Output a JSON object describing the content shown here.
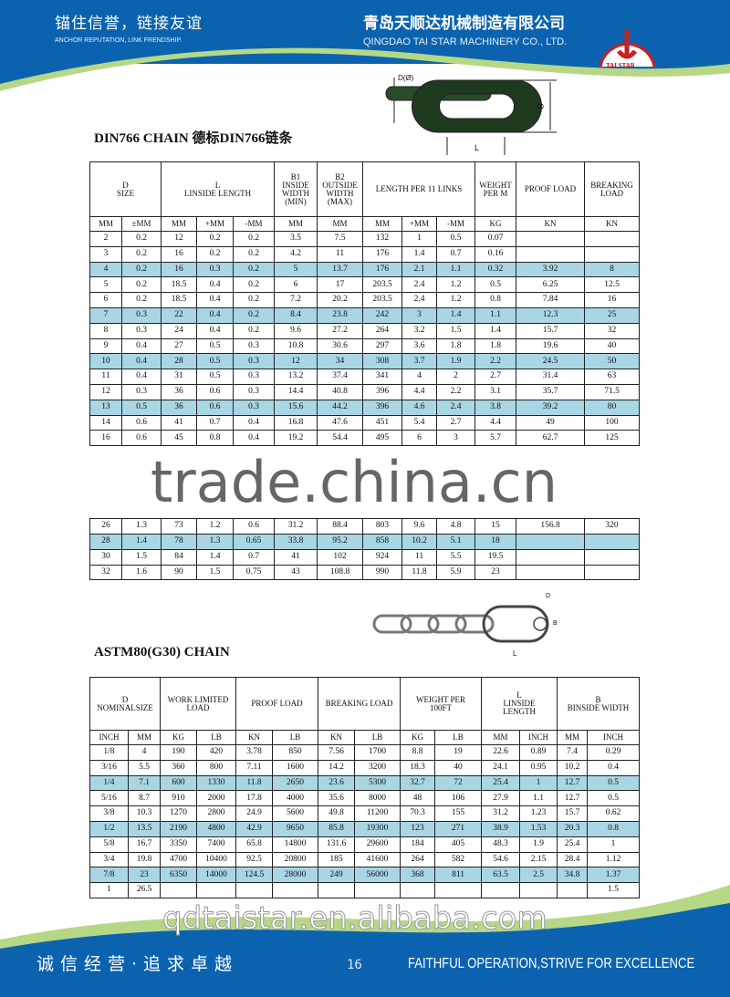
{
  "header": {
    "slogan_cn": "锚住信誉，链接友谊",
    "slogan_en": "ANCHOR REPUTATION, LINK FRENDSHIP.",
    "company_cn": "青岛天顺达机械制造有限公司",
    "company_en": "QINGDAO TAI STAR MACHINERY CO., LTD.",
    "logo_text": "TAI STAR"
  },
  "colors": {
    "blue": "#0b63b0",
    "green": "#b6d886",
    "highlight": "#a9d6e5",
    "logo_red": "#cc1f1f"
  },
  "din": {
    "title": "DIN766 CHAIN    德标DIN766链条",
    "diagram": {
      "d_label": "D(Ø)",
      "b_label": "B",
      "l_label": "L"
    },
    "groups": [
      "D\nSIZE",
      "L\nLINSIDE LENGTH",
      "B1\nINSIDE\nWIDTH\n(MIN)",
      "B2\nOUTSIDE\nWIDTH\n(MAX)",
      "LENGTH PER 11 LINKS",
      "WEIGHT\nPER M",
      "PROOF LOAD",
      "BREAKING\nLOAD"
    ],
    "units": [
      "MM",
      "±MM",
      "MM",
      "+MM",
      "-MM",
      "MM",
      "MM",
      "MM",
      "+MM",
      "-MM",
      "KG",
      "KN",
      "KN"
    ],
    "rows": [
      [
        "2",
        "0.2",
        "12",
        "0.2",
        "0.2",
        "3.5",
        "7.5",
        "132",
        "1",
        "0.5",
        "0.07",
        "",
        ""
      ],
      [
        "3",
        "0.2",
        "16",
        "0.2",
        "0.2",
        "4.2",
        "11",
        "176",
        "1.4",
        "0.7",
        "0.16",
        "",
        ""
      ],
      [
        "4",
        "0.2",
        "16",
        "0.3",
        "0.2",
        "5",
        "13.7",
        "176",
        "2.1",
        "1.1",
        "0.32",
        "3.92",
        "8"
      ],
      [
        "5",
        "0.2",
        "18.5",
        "0.4",
        "0.2",
        "6",
        "17",
        "203.5",
        "2.4",
        "1.2",
        "0.5",
        "6.25",
        "12.5"
      ],
      [
        "6",
        "0.2",
        "18.5",
        "0.4",
        "0.2",
        "7.2",
        "20.2",
        "203.5",
        "2.4",
        "1.2",
        "0.8",
        "7.84",
        "16"
      ],
      [
        "7",
        "0.3",
        "22",
        "0.4",
        "0.2",
        "8.4",
        "23.8",
        "242",
        "3",
        "1.4",
        "1.1",
        "12.3",
        "25"
      ],
      [
        "8",
        "0.3",
        "24",
        "0.4",
        "0.2",
        "9.6",
        "27.2",
        "264",
        "3.2",
        "1.5",
        "1.4",
        "15.7",
        "32"
      ],
      [
        "9",
        "0.4",
        "27",
        "0.5",
        "0.3",
        "10.8",
        "30.6",
        "297",
        "3.6",
        "1.8",
        "1.8",
        "19.6",
        "40"
      ],
      [
        "10",
        "0.4",
        "28",
        "0.5",
        "0.3",
        "12",
        "34",
        "308",
        "3.7",
        "1.9",
        "2.2",
        "24.5",
        "50"
      ],
      [
        "11",
        "0.4",
        "31",
        "0.5",
        "0.3",
        "13.2",
        "37.4",
        "341",
        "4",
        "2",
        "2.7",
        "31.4",
        "63"
      ],
      [
        "12",
        "0.3",
        "36",
        "0.6",
        "0.3",
        "14.4",
        "40.8",
        "396",
        "4.4",
        "2.2",
        "3.1",
        "35.7",
        "71.5"
      ],
      [
        "13",
        "0.5",
        "36",
        "0.6",
        "0.3",
        "15.6",
        "44.2",
        "396",
        "4.6",
        "2.4",
        "3.8",
        "39.2",
        "80"
      ],
      [
        "14",
        "0.6",
        "41",
        "0.7",
        "0.4",
        "16.8",
        "47.6",
        "451",
        "5.4",
        "2.7",
        "4.4",
        "49",
        "100"
      ],
      [
        "16",
        "0.6",
        "45",
        "0.8",
        "0.4",
        "19.2",
        "54.4",
        "495",
        "6",
        "3",
        "5.7",
        "62.7",
        "125"
      ]
    ],
    "rows_after": [
      [
        "26",
        "1.3",
        "73",
        "1.2",
        "0.6",
        "31.2",
        "88.4",
        "803",
        "9.6",
        "4.8",
        "15",
        "156.8",
        "320"
      ],
      [
        "28",
        "1.4",
        "78",
        "1.3",
        "0.65",
        "33.8",
        "95.2",
        "858",
        "10.2",
        "5.1",
        "18",
        "",
        ""
      ],
      [
        "30",
        "1.5",
        "84",
        "1.4",
        "0.7",
        "41",
        "102",
        "924",
        "11",
        "5.5",
        "19.5",
        "",
        ""
      ],
      [
        "32",
        "1.6",
        "90",
        "1.5",
        "0.75",
        "43",
        "108.8",
        "990",
        "11.8",
        "5.9",
        "23",
        "",
        ""
      ]
    ],
    "highlight_rows": [
      "4",
      "7",
      "10",
      "13",
      "28"
    ]
  },
  "watermark1": "trade.china.cn",
  "astm": {
    "title": "ASTM80(G30) CHAIN",
    "diagram": {
      "d_label": "D",
      "b_label": "B",
      "l_label": "L"
    },
    "groups": [
      "D\nNOMINALSIZE",
      "WORK LIMITED\nLOAD",
      "PROOF LOAD",
      "BREAKING LOAD",
      "WEIGHT PER\n100FT",
      "L\nLINSIDE\nLENGTH",
      "B\nBINSIDE WIDTH"
    ],
    "units": [
      "INCH",
      "MM",
      "KG",
      "LB",
      "KN",
      "LB",
      "KN",
      "LB",
      "KG",
      "LB",
      "MM",
      "INCH",
      "MM",
      "INCH"
    ],
    "rows": [
      [
        "1/8",
        "4",
        "190",
        "420",
        "3.78",
        "850",
        "7.56",
        "1700",
        "8.8",
        "19",
        "22.6",
        "0.89",
        "7.4",
        "0.29"
      ],
      [
        "3/16",
        "5.5",
        "360",
        "800",
        "7.11",
        "1600",
        "14.2",
        "3200",
        "18.3",
        "40",
        "24.1",
        "0.95",
        "10.2",
        "0.4"
      ],
      [
        "1/4",
        "7.1",
        "600",
        "1330",
        "11.8",
        "2650",
        "23.6",
        "5300",
        "32.7",
        "72",
        "25.4",
        "1",
        "12.7",
        "0.5"
      ],
      [
        "5/16",
        "8.7",
        "910",
        "2000",
        "17.8",
        "4000",
        "35.6",
        "8000",
        "48",
        "106",
        "27.9",
        "1.1",
        "12.7",
        "0.5"
      ],
      [
        "3/8",
        "10.3",
        "1270",
        "2800",
        "24.9",
        "5600",
        "49.8",
        "11200",
        "70.3",
        "155",
        "31.2",
        "1.23",
        "15.7",
        "0.62"
      ],
      [
        "1/2",
        "13.5",
        "2190",
        "4800",
        "42.9",
        "9650",
        "85.8",
        "19300",
        "123",
        "271",
        "38.9",
        "1.53",
        "20.3",
        "0.8"
      ],
      [
        "5/8",
        "16.7",
        "3350",
        "7400",
        "65.8",
        "14800",
        "131.6",
        "29600",
        "184",
        "405",
        "48.3",
        "1.9",
        "25.4",
        "1"
      ],
      [
        "3/4",
        "19.8",
        "4700",
        "10400",
        "92.5",
        "20800",
        "185",
        "41600",
        "264",
        "582",
        "54.6",
        "2.15",
        "28.4",
        "1.12"
      ],
      [
        "7/8",
        "23",
        "6350",
        "14000",
        "124.5",
        "28000",
        "249",
        "56000",
        "368",
        "811",
        "63.5",
        "2.5",
        "34.8",
        "1.37"
      ],
      [
        "1",
        "26.5",
        "",
        "",
        "",
        "",
        "",
        "",
        "",
        "",
        "",
        "",
        "",
        "1.5"
      ]
    ],
    "highlight_rows": [
      "1/4",
      "1/2",
      "7/8"
    ]
  },
  "watermark2": "qdtaistar.en.alibaba.com",
  "footer": {
    "slogan_cn": "诚信经营·追求卓越",
    "page_number": "16",
    "slogan_en": "FAITHFUL OPERATION,STRIVE FOR EXCELLENCE"
  }
}
